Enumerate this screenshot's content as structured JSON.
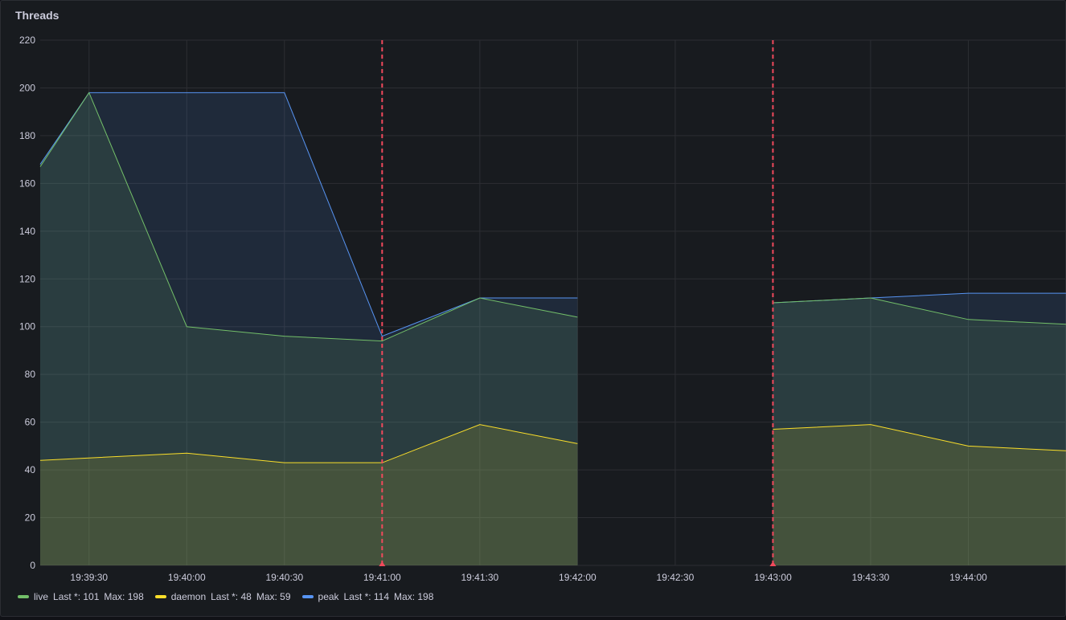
{
  "panel": {
    "title": "Threads"
  },
  "colors": {
    "live": "#73bf69",
    "daemon": "#fade2a",
    "peak": "#5794f2",
    "annotation": "#f2495c"
  },
  "legend": [
    {
      "name": "live",
      "last_label": "Last *: 101",
      "max_label": "Max: 198",
      "color": "#73bf69"
    },
    {
      "name": "daemon",
      "last_label": "Last *: 48",
      "max_label": "Max: 59",
      "color": "#fade2a"
    },
    {
      "name": "peak",
      "last_label": "Last *: 114",
      "max_label": "Max: 198",
      "color": "#5794f2"
    }
  ],
  "chart_data": {
    "type": "area",
    "title": "Threads",
    "ylim": [
      0,
      220
    ],
    "yticks": [
      0,
      20,
      40,
      60,
      80,
      100,
      120,
      140,
      160,
      180,
      200,
      220
    ],
    "xlim": [
      "19:39:15",
      "19:44:30"
    ],
    "xticks": [
      "19:39:30",
      "19:40:00",
      "19:40:30",
      "19:41:00",
      "19:41:30",
      "19:42:00",
      "19:42:30",
      "19:43:00",
      "19:43:30",
      "19:44:00"
    ],
    "grid": true,
    "legend_position": "bottom-left",
    "annotations": [
      "19:41:00",
      "19:43:00"
    ],
    "series": [
      {
        "name": "live",
        "color": "#73bf69",
        "segments": [
          [
            [
              "19:39:15",
              167
            ],
            [
              "19:39:30",
              198
            ],
            [
              "19:40:00",
              100
            ],
            [
              "19:40:30",
              96
            ],
            [
              "19:41:00",
              94
            ],
            [
              "19:41:30",
              112
            ],
            [
              "19:42:00",
              104
            ]
          ],
          [
            [
              "19:43:00",
              110
            ],
            [
              "19:43:30",
              112
            ],
            [
              "19:44:00",
              103
            ],
            [
              "19:44:30",
              101
            ]
          ]
        ]
      },
      {
        "name": "daemon",
        "color": "#fade2a",
        "segments": [
          [
            [
              "19:39:15",
              44
            ],
            [
              "19:39:30",
              45
            ],
            [
              "19:40:00",
              47
            ],
            [
              "19:40:30",
              43
            ],
            [
              "19:41:00",
              43
            ],
            [
              "19:41:30",
              59
            ],
            [
              "19:42:00",
              51
            ]
          ],
          [
            [
              "19:43:00",
              57
            ],
            [
              "19:43:30",
              59
            ],
            [
              "19:44:00",
              50
            ],
            [
              "19:44:30",
              48
            ]
          ]
        ]
      },
      {
        "name": "peak",
        "color": "#5794f2",
        "segments": [
          [
            [
              "19:39:15",
              168
            ],
            [
              "19:39:30",
              198
            ],
            [
              "19:40:00",
              198
            ],
            [
              "19:40:30",
              198
            ],
            [
              "19:41:00",
              96
            ],
            [
              "19:41:30",
              112
            ],
            [
              "19:42:00",
              112
            ]
          ],
          [
            [
              "19:43:00",
              110
            ],
            [
              "19:43:30",
              112
            ],
            [
              "19:44:00",
              114
            ],
            [
              "19:44:30",
              114
            ]
          ]
        ]
      }
    ]
  }
}
